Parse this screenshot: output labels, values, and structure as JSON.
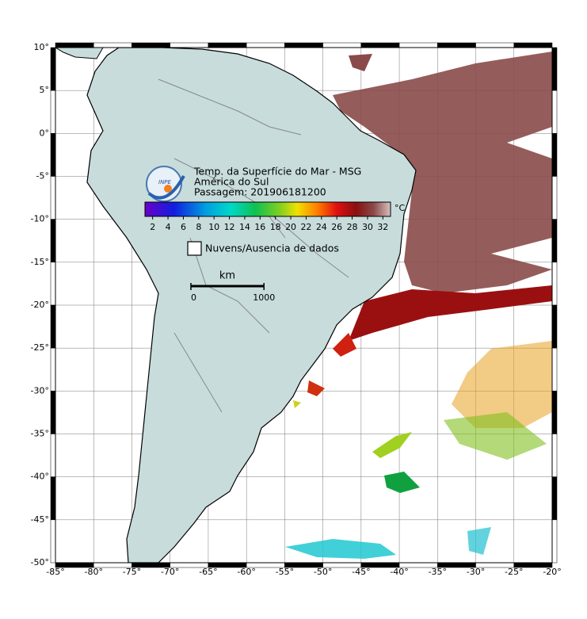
{
  "map": {
    "title": "Temp. da Superfície do Mar - MSG",
    "subtitle": "América do Sul",
    "pass": "Passagem: 201906181200",
    "logo": "INPE",
    "colorbar": {
      "lim": [
        1,
        33
      ],
      "ticks": [
        2,
        4,
        6,
        8,
        10,
        12,
        14,
        16,
        18,
        20,
        22,
        24,
        26,
        28,
        30,
        32
      ],
      "unit": "°C"
    },
    "legend": "Nuvens/Ausencia de dados",
    "scale": {
      "unit": "km",
      "ticks": [
        0,
        1000
      ]
    },
    "xlim": [
      -85,
      -20
    ],
    "xticks": [
      {
        "value": -85,
        "label": "-85°"
      },
      {
        "value": -80,
        "label": "-80°"
      },
      {
        "value": -75,
        "label": "-75°"
      },
      {
        "value": -70,
        "label": "-70°"
      },
      {
        "value": -65,
        "label": "-65°"
      },
      {
        "value": -60,
        "label": "-60°"
      },
      {
        "value": -55,
        "label": "-55°"
      },
      {
        "value": -50,
        "label": "-50°"
      },
      {
        "value": -45,
        "label": "-45°"
      },
      {
        "value": -40,
        "label": "-40°"
      },
      {
        "value": -35,
        "label": "-35°"
      },
      {
        "value": -30,
        "label": "-30°"
      },
      {
        "value": -25,
        "label": "-25°"
      },
      {
        "value": -20,
        "label": "-20°"
      }
    ],
    "ylim": [
      -50,
      10
    ],
    "yticks": [
      {
        "value": 10,
        "label": "10°"
      },
      {
        "value": 5,
        "label": "5°"
      },
      {
        "value": 0,
        "label": "0°"
      },
      {
        "value": -5,
        "label": "-5°"
      },
      {
        "value": -10,
        "label": "-10°"
      },
      {
        "value": -15,
        "label": "-15°"
      },
      {
        "value": -20,
        "label": "-20°"
      },
      {
        "value": -25,
        "label": "-25°"
      },
      {
        "value": -30,
        "label": "-30°"
      },
      {
        "value": -35,
        "label": "-35°"
      },
      {
        "value": -40,
        "label": "-40°"
      },
      {
        "value": -45,
        "label": "-45°"
      },
      {
        "value": -50,
        "label": "-50°"
      }
    ]
  }
}
